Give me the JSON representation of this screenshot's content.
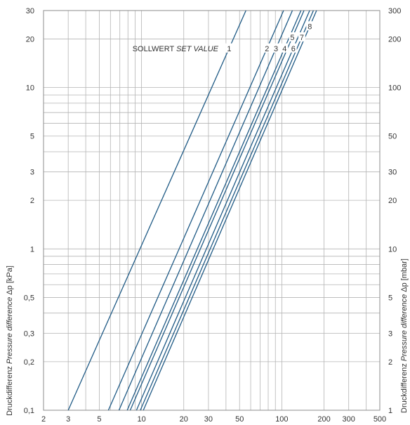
{
  "chart_data": {
    "type": "line",
    "x_scale": "log",
    "y_scale": "log",
    "xlim": [
      2,
      500
    ],
    "ylim": [
      0.1,
      30
    ],
    "y2lim": [
      1,
      300
    ],
    "grid": true,
    "x_ticks": [
      2,
      3,
      5,
      10,
      20,
      30,
      50,
      100,
      200,
      300,
      500
    ],
    "x_tick_labels": [
      "2",
      "3",
      "5",
      "10",
      "20",
      "30",
      "50",
      "100",
      "200",
      "300",
      "500"
    ],
    "y_ticks": [
      0.1,
      0.2,
      0.3,
      0.5,
      1,
      2,
      3,
      5,
      10,
      20,
      30
    ],
    "y_tick_labels": [
      "0,1",
      "0,2",
      "0,3",
      "0,5",
      "1",
      "2",
      "3",
      "5",
      "10",
      "20",
      "30"
    ],
    "y2_ticks": [
      1,
      2,
      3,
      5,
      10,
      20,
      30,
      50,
      100,
      200,
      300
    ],
    "y2_tick_labels": [
      "1",
      "2",
      "3",
      "5",
      "10",
      "20",
      "30",
      "50",
      "100",
      "200",
      "300"
    ],
    "ylabel": {
      "plain": "Druckdifferenz ",
      "italic": "Pressure difference",
      "unit": " Δp [kPa]"
    },
    "y2label": {
      "plain": "Druckdifferenz ",
      "italic": "Pressure difference",
      "unit": " Δp [mbar]"
    },
    "annotation": {
      "plain": "SOLLWERT ",
      "italic": "SET VALUE"
    },
    "line_color": "#1f5a85",
    "grid_color": "#b4b4b4",
    "series": [
      {
        "name": "1",
        "x": [
          3.0,
          55.5
        ],
        "y": [
          0.1,
          30
        ]
      },
      {
        "name": "2",
        "x": [
          5.8,
          103
        ],
        "y": [
          0.1,
          30
        ]
      },
      {
        "name": "3",
        "x": [
          6.9,
          119
        ],
        "y": [
          0.1,
          30
        ]
      },
      {
        "name": "4",
        "x": [
          7.9,
          137
        ],
        "y": [
          0.1,
          30
        ]
      },
      {
        "name": "5",
        "x": [
          8.3,
          144
        ],
        "y": [
          0.1,
          30
        ]
      },
      {
        "name": "6",
        "x": [
          9.2,
          158
        ],
        "y": [
          0.1,
          30
        ]
      },
      {
        "name": "7",
        "x": [
          9.8,
          168
        ],
        "y": [
          0.1,
          30
        ]
      },
      {
        "name": "8",
        "x": [
          10.3,
          177
        ],
        "y": [
          0.1,
          30
        ]
      }
    ]
  }
}
